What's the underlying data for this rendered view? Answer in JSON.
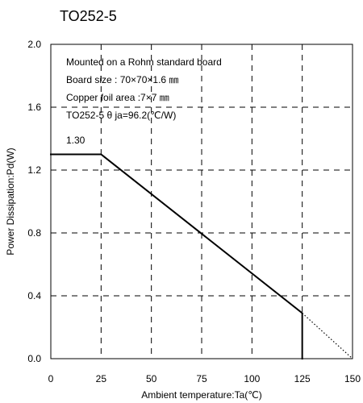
{
  "chart_data": {
    "type": "line",
    "title": "TO252-5",
    "xlabel": "Ambient temperature:Ta(℃)",
    "ylabel": "Power Dissipation:Pd(W)",
    "xlim": [
      0,
      150
    ],
    "ylim": [
      0.0,
      2.0
    ],
    "x_ticks": [
      "0",
      "25",
      "50",
      "75",
      "100",
      "125",
      "150"
    ],
    "y_ticks": [
      "0.0",
      "0.4",
      "0.8",
      "1.2",
      "1.6",
      "2.0"
    ],
    "grid": true,
    "series": [
      {
        "values": [
          {
            "x": 0,
            "y": 1.3
          },
          {
            "x": 25,
            "y": 1.3
          },
          {
            "x": 125,
            "y": 0.29
          },
          {
            "x": 125,
            "y": 0.0
          }
        ]
      }
    ],
    "extrapolation": [
      {
        "x": 125,
        "y": 0.29
      },
      {
        "x": 150,
        "y": 0.0
      }
    ],
    "annotations": {
      "value_label": "1.30",
      "lines": [
        "Mounted on a Rohm standard board",
        "Board size : 70×70×1.6 ㎜",
        "Copper foil area :7×7 ㎜",
        "TO252-5 θ ja=96.2(℃/W)"
      ]
    },
    "colors": {
      "line": "#000000",
      "grid": "#000000"
    }
  }
}
